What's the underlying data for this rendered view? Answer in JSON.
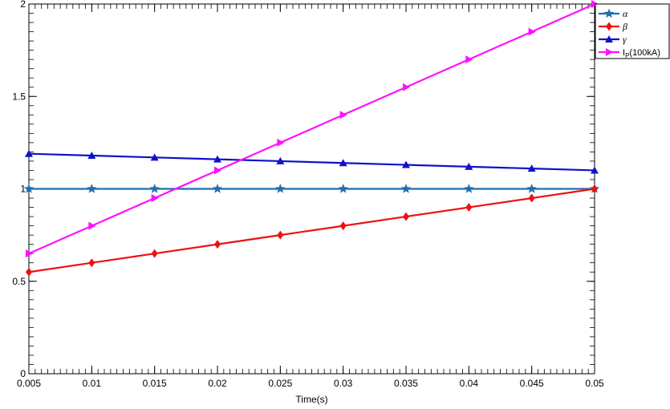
{
  "chart_data": {
    "type": "line",
    "xlabel": "Time(s)",
    "ylabel": "",
    "xlim": [
      0.005,
      0.05
    ],
    "ylim": [
      0,
      2
    ],
    "x_ticks": [
      "0.005",
      "0.01",
      "0.015",
      "0.02",
      "0.025",
      "0.03",
      "0.035",
      "0.04",
      "0.045",
      "0.05"
    ],
    "y_ticks": [
      "0",
      "0.5",
      "1",
      "1.5",
      "2"
    ],
    "grid": false,
    "legend_position": "top-right",
    "x": [
      0.005,
      0.01,
      0.015,
      0.02,
      0.025,
      0.03,
      0.035,
      0.04,
      0.045,
      0.05
    ],
    "series": [
      {
        "name": "α",
        "marker": "star",
        "color": "#1f6fb2",
        "values": [
          1,
          1,
          1,
          1,
          1,
          1,
          1,
          1,
          1,
          1
        ]
      },
      {
        "name": "β",
        "marker": "diamond",
        "color": "#ee1111",
        "values": [
          0.55,
          0.6,
          0.65,
          0.7,
          0.75,
          0.8,
          0.85,
          0.9,
          0.95,
          1.0
        ]
      },
      {
        "name": "γ",
        "marker": "triangle-up",
        "color": "#1111cc",
        "values": [
          1.19,
          1.18,
          1.17,
          1.16,
          1.15,
          1.14,
          1.13,
          1.12,
          1.11,
          1.1
        ]
      },
      {
        "name": "I",
        "name_subscript": "P",
        "name_suffix": "(100kA)",
        "marker": "triangle-right",
        "color": "#ff11ff",
        "values": [
          0.65,
          0.8,
          0.95,
          1.1,
          1.25,
          1.4,
          1.55,
          1.7,
          1.85,
          2.0
        ]
      }
    ]
  }
}
